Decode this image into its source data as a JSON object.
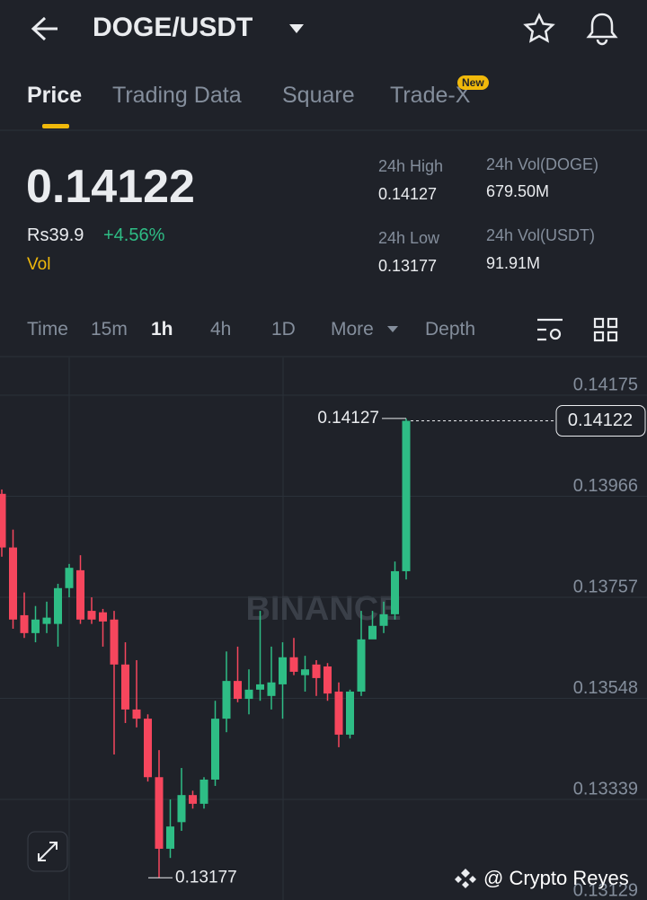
{
  "header": {
    "title": "DOGE/USDT"
  },
  "tabs": {
    "items": [
      "Price",
      "Trading Data",
      "Square",
      "Trade-X"
    ],
    "badge": "New"
  },
  "ticker": {
    "price": "0.14122",
    "fiat": "Rs39.9",
    "change": "+4.56%",
    "vol": "Vol",
    "stats": [
      {
        "label": "24h High",
        "value": "0.14127"
      },
      {
        "label": "24h Vol(DOGE)",
        "value": "679.50M"
      },
      {
        "label": "24h Low",
        "value": "0.13177"
      },
      {
        "label": "24h Vol(USDT)",
        "value": "91.91M"
      }
    ]
  },
  "intervals": {
    "items": [
      "Time",
      "15m",
      "1h",
      "4h",
      "1D",
      "More",
      "Depth"
    ]
  },
  "chart": {
    "type": "candlestick",
    "watermark": "BINANCE",
    "ylim": [
      0.13131,
      0.14253
    ],
    "yticks": [
      0.14175,
      0.13966,
      0.13757,
      0.13548,
      0.13339,
      0.13129
    ],
    "up_color": "#2ebd85",
    "down_color": "#f6465d",
    "max_high": 0.14127,
    "min_low": 0.13177,
    "last_price": 0.14122,
    "candles": {
      "open": [
        0.13971,
        0.1386,
        0.1372,
        0.13683,
        0.13702,
        0.13702,
        0.13776,
        0.13813,
        0.13729,
        0.13726,
        0.13711,
        0.13618,
        0.13525,
        0.13506,
        0.13385,
        0.13237,
        0.13292,
        0.13348,
        0.1333,
        0.1338,
        0.13506,
        0.13584,
        0.13547,
        0.13566,
        0.13553,
        0.13577,
        0.13633,
        0.13596,
        0.13618,
        0.13614,
        0.13562,
        0.13473,
        0.13562,
        0.1367,
        0.13698,
        0.13722,
        0.13811
      ],
      "high": [
        0.1398,
        0.13897,
        0.13767,
        0.13739,
        0.13748,
        0.13785,
        0.13826,
        0.13844,
        0.13757,
        0.13733,
        0.13729,
        0.13664,
        0.13627,
        0.13515,
        0.13441,
        0.13339,
        0.13404,
        0.13357,
        0.13385,
        0.13543,
        0.13645,
        0.13655,
        0.13608,
        0.13729,
        0.13655,
        0.13664,
        0.13673,
        0.13636,
        0.13627,
        0.13621,
        0.13581,
        0.13566,
        0.13729,
        0.13729,
        0.13748,
        0.13831,
        0.14127
      ],
      "low": [
        0.13841,
        0.13692,
        0.13673,
        0.13664,
        0.13683,
        0.13655,
        0.13757,
        0.13702,
        0.13702,
        0.13655,
        0.13432,
        0.13497,
        0.13488,
        0.13376,
        0.13177,
        0.13218,
        0.13274,
        0.1332,
        0.1332,
        0.13367,
        0.13478,
        0.1354,
        0.13515,
        0.13543,
        0.13525,
        0.13506,
        0.13596,
        0.13562,
        0.13553,
        0.13543,
        0.13447,
        0.13465,
        0.13553,
        0.13673,
        0.13683,
        0.13711,
        0.13794
      ],
      "close": [
        0.1386,
        0.13711,
        0.13683,
        0.13711,
        0.13715,
        0.13776,
        0.13818,
        0.13711,
        0.13711,
        0.13707,
        0.13618,
        0.13525,
        0.13506,
        0.13385,
        0.13237,
        0.13283,
        0.13348,
        0.1333,
        0.1338,
        0.13506,
        0.13584,
        0.13547,
        0.13566,
        0.13577,
        0.13581,
        0.13633,
        0.13603,
        0.13608,
        0.1359,
        0.13558,
        0.13473,
        0.13562,
        0.1367,
        0.13698,
        0.13722,
        0.13811,
        0.14122
      ]
    }
  },
  "footer": {
    "credit": "@ Crypto Reyes"
  }
}
